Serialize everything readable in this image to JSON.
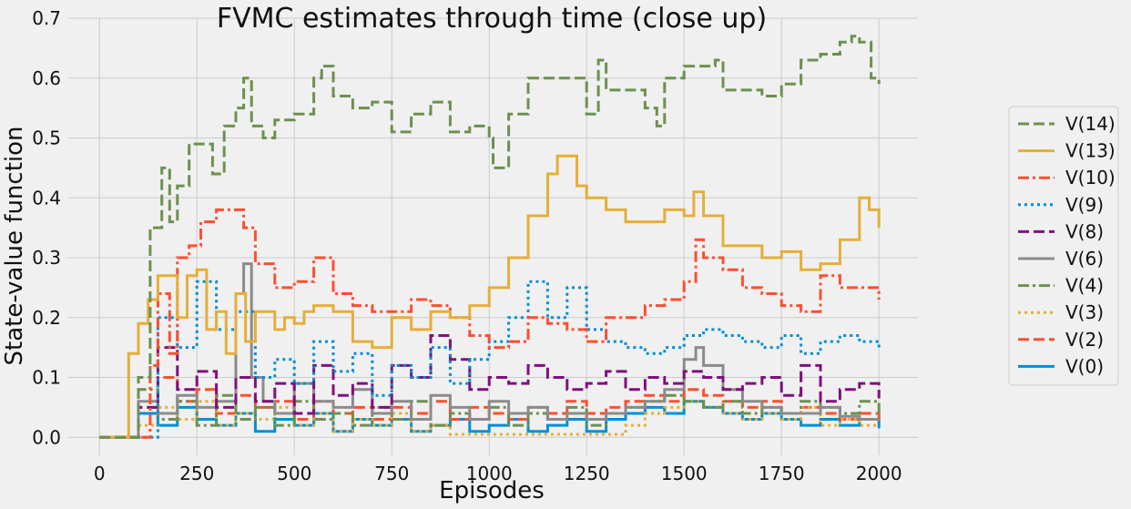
{
  "chart_data": {
    "type": "line",
    "title": "FVMC estimates through time (close up)",
    "xlabel": "Episodes",
    "ylabel": "State-value function",
    "xlim": [
      -80,
      2100
    ],
    "ylim": [
      -0.03,
      0.7
    ],
    "xticks": [
      0,
      250,
      500,
      750,
      1000,
      1250,
      1500,
      1750,
      2000
    ],
    "yticks": [
      0.0,
      0.1,
      0.2,
      0.3,
      0.4,
      0.5,
      0.6,
      0.7
    ],
    "grid": true,
    "legend_position": "right",
    "series": [
      {
        "name": "V(14)",
        "color": "#6d904f",
        "dash": "dashed",
        "x": [
          0,
          50,
          100,
          130,
          160,
          180,
          200,
          230,
          260,
          290,
          320,
          350,
          370,
          390,
          420,
          450,
          500,
          550,
          570,
          600,
          650,
          700,
          750,
          800,
          850,
          900,
          950,
          1000,
          1010,
          1050,
          1100,
          1150,
          1200,
          1250,
          1280,
          1300,
          1350,
          1400,
          1430,
          1450,
          1500,
          1550,
          1580,
          1600,
          1650,
          1700,
          1750,
          1800,
          1850,
          1900,
          1930,
          1950,
          1980,
          2000
        ],
        "y": [
          0,
          0,
          0.1,
          0.35,
          0.45,
          0.36,
          0.42,
          0.49,
          0.49,
          0.44,
          0.52,
          0.55,
          0.6,
          0.52,
          0.5,
          0.53,
          0.54,
          0.6,
          0.62,
          0.57,
          0.55,
          0.56,
          0.51,
          0.54,
          0.56,
          0.51,
          0.52,
          0.5,
          0.45,
          0.54,
          0.6,
          0.6,
          0.6,
          0.54,
          0.63,
          0.58,
          0.58,
          0.55,
          0.52,
          0.6,
          0.62,
          0.62,
          0.63,
          0.58,
          0.58,
          0.57,
          0.59,
          0.63,
          0.64,
          0.66,
          0.67,
          0.66,
          0.6,
          0.59
        ]
      },
      {
        "name": "V(13)",
        "color": "#e5ae38",
        "dash": "solid",
        "x": [
          0,
          50,
          75,
          100,
          125,
          150,
          175,
          200,
          225,
          250,
          275,
          300,
          325,
          350,
          375,
          400,
          425,
          450,
          475,
          500,
          525,
          550,
          600,
          650,
          700,
          750,
          800,
          850,
          900,
          950,
          1000,
          1050,
          1100,
          1150,
          1175,
          1200,
          1225,
          1250,
          1300,
          1350,
          1400,
          1450,
          1500,
          1525,
          1550,
          1600,
          1650,
          1700,
          1750,
          1800,
          1850,
          1900,
          1950,
          1975,
          2000
        ],
        "y": [
          0,
          0,
          0.14,
          0.19,
          0.23,
          0.27,
          0.27,
          0.2,
          0.27,
          0.28,
          0.18,
          0.21,
          0.14,
          0.24,
          0.16,
          0.21,
          0.21,
          0.18,
          0.2,
          0.19,
          0.21,
          0.22,
          0.21,
          0.16,
          0.15,
          0.2,
          0.18,
          0.21,
          0.2,
          0.22,
          0.25,
          0.3,
          0.37,
          0.44,
          0.47,
          0.47,
          0.42,
          0.4,
          0.38,
          0.36,
          0.36,
          0.38,
          0.37,
          0.41,
          0.37,
          0.32,
          0.32,
          0.3,
          0.31,
          0.28,
          0.29,
          0.33,
          0.4,
          0.38,
          0.35
        ]
      },
      {
        "name": "V(10)",
        "color": "#fc4f30",
        "dash": "dashdot",
        "x": [
          0,
          100,
          130,
          150,
          180,
          200,
          230,
          260,
          300,
          340,
          370,
          400,
          450,
          500,
          550,
          600,
          650,
          700,
          800,
          850,
          900,
          950,
          1000,
          1050,
          1100,
          1150,
          1200,
          1250,
          1300,
          1350,
          1400,
          1450,
          1500,
          1530,
          1550,
          1600,
          1650,
          1700,
          1750,
          1800,
          1850,
          1900,
          1950,
          2000
        ],
        "y": [
          0,
          0,
          0.12,
          0.24,
          0.14,
          0.3,
          0.32,
          0.36,
          0.38,
          0.38,
          0.35,
          0.29,
          0.25,
          0.26,
          0.3,
          0.24,
          0.22,
          0.21,
          0.23,
          0.22,
          0.2,
          0.17,
          0.15,
          0.16,
          0.2,
          0.19,
          0.18,
          0.16,
          0.2,
          0.2,
          0.22,
          0.23,
          0.26,
          0.33,
          0.3,
          0.28,
          0.25,
          0.24,
          0.22,
          0.21,
          0.27,
          0.25,
          0.25,
          0.23
        ]
      },
      {
        "name": "V(9)",
        "color": "#008fd5",
        "dash": "dotted",
        "x": [
          0,
          100,
          150,
          200,
          250,
          300,
          350,
          400,
          450,
          500,
          550,
          600,
          650,
          700,
          750,
          800,
          850,
          900,
          950,
          1000,
          1050,
          1100,
          1150,
          1200,
          1250,
          1300,
          1350,
          1400,
          1450,
          1500,
          1550,
          1600,
          1650,
          1700,
          1750,
          1800,
          1850,
          1900,
          1950,
          2000
        ],
        "y": [
          0,
          0,
          0.2,
          0.15,
          0.26,
          0.18,
          0.21,
          0.1,
          0.13,
          0.09,
          0.16,
          0.11,
          0.14,
          0.07,
          0.12,
          0.1,
          0.15,
          0.09,
          0.13,
          0.16,
          0.2,
          0.26,
          0.2,
          0.25,
          0.18,
          0.16,
          0.15,
          0.14,
          0.15,
          0.17,
          0.18,
          0.17,
          0.16,
          0.15,
          0.17,
          0.14,
          0.16,
          0.17,
          0.16,
          0.15
        ]
      },
      {
        "name": "V(8)",
        "color": "#810f7c",
        "dash": "dashed",
        "x": [
          0,
          50,
          100,
          150,
          200,
          250,
          300,
          350,
          400,
          450,
          500,
          550,
          600,
          650,
          700,
          750,
          800,
          850,
          900,
          950,
          1000,
          1050,
          1100,
          1150,
          1200,
          1250,
          1300,
          1350,
          1400,
          1450,
          1500,
          1550,
          1600,
          1650,
          1700,
          1750,
          1800,
          1850,
          1900,
          1950,
          2000
        ],
        "y": [
          0,
          0,
          0.05,
          0.15,
          0.08,
          0.11,
          0.05,
          0.1,
          0.06,
          0.09,
          0.04,
          0.12,
          0.07,
          0.09,
          0.05,
          0.12,
          0.1,
          0.17,
          0.13,
          0.08,
          0.1,
          0.09,
          0.12,
          0.1,
          0.08,
          0.09,
          0.11,
          0.08,
          0.1,
          0.09,
          0.11,
          0.1,
          0.08,
          0.09,
          0.1,
          0.07,
          0.12,
          0.06,
          0.08,
          0.09,
          0.065
        ]
      },
      {
        "name": "V(6)",
        "color": "#8b8b8b",
        "dash": "solid",
        "x": [
          0,
          50,
          100,
          150,
          200,
          250,
          300,
          350,
          370,
          390,
          420,
          450,
          500,
          550,
          600,
          650,
          700,
          750,
          800,
          850,
          900,
          950,
          1000,
          1050,
          1100,
          1150,
          1200,
          1250,
          1300,
          1350,
          1400,
          1450,
          1500,
          1530,
          1550,
          1600,
          1650,
          1700,
          1750,
          1800,
          1850,
          1900,
          1950,
          2000
        ],
        "y": [
          0,
          0,
          0.06,
          0.04,
          0.07,
          0.05,
          0.06,
          0.24,
          0.29,
          0.1,
          0.06,
          0.04,
          0.09,
          0.06,
          0.05,
          0.08,
          0.04,
          0.06,
          0.03,
          0.07,
          0.05,
          0.03,
          0.06,
          0.04,
          0.05,
          0.03,
          0.04,
          0.03,
          0.04,
          0.05,
          0.06,
          0.08,
          0.13,
          0.15,
          0.12,
          0.08,
          0.06,
          0.05,
          0.04,
          0.04,
          0.05,
          0.035,
          0.03,
          0.03
        ]
      },
      {
        "name": "V(4)",
        "color": "#6d904f",
        "dash": "dashdot",
        "x": [
          0,
          50,
          100,
          150,
          200,
          250,
          300,
          350,
          400,
          450,
          500,
          550,
          600,
          650,
          700,
          750,
          800,
          850,
          900,
          950,
          1000,
          1050,
          1100,
          1150,
          1200,
          1250,
          1300,
          1350,
          1400,
          1450,
          1500,
          1550,
          1600,
          1650,
          1700,
          1750,
          1800,
          1850,
          1900,
          1950,
          2000
        ],
        "y": [
          0,
          0,
          0.08,
          0.03,
          0.06,
          0.02,
          0.07,
          0.03,
          0.05,
          0.02,
          0.06,
          0.03,
          0.04,
          0.02,
          0.05,
          0.03,
          0.06,
          0.02,
          0.04,
          0.03,
          0.05,
          0.02,
          0.04,
          0.03,
          0.05,
          0.02,
          0.04,
          0.05,
          0.06,
          0.07,
          0.06,
          0.05,
          0.06,
          0.04,
          0.05,
          0.04,
          0.06,
          0.05,
          0.04,
          0.06,
          0.03
        ]
      },
      {
        "name": "V(3)",
        "color": "#e5ae38",
        "dash": "dotted",
        "x": [
          0,
          50,
          100,
          150,
          200,
          250,
          300,
          350,
          400,
          450,
          500,
          550,
          600,
          650,
          700,
          750,
          800,
          850,
          900,
          950,
          1000,
          1050,
          1100,
          1150,
          1200,
          1250,
          1300,
          1350,
          1400,
          1450,
          1500,
          1550,
          1600,
          1650,
          1700,
          1750,
          1800,
          1850,
          1900,
          1950,
          2000
        ],
        "y": [
          0,
          0,
          0.02,
          0.05,
          0.03,
          0.06,
          0.02,
          0.04,
          0.03,
          0.05,
          0.02,
          0.04,
          0.01,
          0.03,
          0.02,
          0.04,
          0.01,
          0.02,
          0.005,
          0.005,
          0.005,
          0.005,
          0.005,
          0.005,
          0.005,
          0.005,
          0.005,
          0.02,
          0.04,
          0.05,
          0.06,
          0.05,
          0.04,
          0.03,
          0.04,
          0.03,
          0.05,
          0.02,
          0.03,
          0.02,
          0.02
        ]
      },
      {
        "name": "V(2)",
        "color": "#fc4f30",
        "dash": "dashed",
        "x": [
          0,
          50,
          100,
          150,
          200,
          250,
          300,
          350,
          400,
          450,
          500,
          550,
          600,
          650,
          700,
          750,
          800,
          850,
          900,
          950,
          1000,
          1050,
          1100,
          1150,
          1200,
          1250,
          1300,
          1350,
          1400,
          1450,
          1500,
          1550,
          1600,
          1650,
          1700,
          1750,
          1800,
          1850,
          1900,
          1950,
          2000
        ],
        "y": [
          0,
          0,
          0.05,
          0.1,
          0.06,
          0.08,
          0.04,
          0.07,
          0.05,
          0.06,
          0.03,
          0.06,
          0.04,
          0.05,
          0.03,
          0.05,
          0.04,
          0.06,
          0.03,
          0.05,
          0.04,
          0.03,
          0.05,
          0.04,
          0.06,
          0.04,
          0.05,
          0.06,
          0.07,
          0.06,
          0.08,
          0.07,
          0.06,
          0.05,
          0.06,
          0.04,
          0.05,
          0.04,
          0.03,
          0.04,
          0.02
        ]
      },
      {
        "name": "V(0)",
        "color": "#008fd5",
        "dash": "solid",
        "x": [
          0,
          50,
          100,
          150,
          200,
          250,
          300,
          350,
          400,
          450,
          500,
          550,
          600,
          650,
          700,
          750,
          800,
          850,
          900,
          950,
          1000,
          1050,
          1100,
          1150,
          1200,
          1250,
          1300,
          1350,
          1400,
          1450,
          1500,
          1550,
          1600,
          1650,
          1700,
          1750,
          1800,
          1850,
          1900,
          1950,
          2000
        ],
        "y": [
          0,
          0,
          0.04,
          0.02,
          0.05,
          0.03,
          0.02,
          0.04,
          0.01,
          0.03,
          0.02,
          0.04,
          0.01,
          0.03,
          0.02,
          0.03,
          0.01,
          0.02,
          0.03,
          0.01,
          0.02,
          0.03,
          0.01,
          0.02,
          0.03,
          0.01,
          0.03,
          0.04,
          0.05,
          0.04,
          0.06,
          0.05,
          0.04,
          0.03,
          0.04,
          0.03,
          0.02,
          0.03,
          0.02,
          0.03,
          0.015
        ]
      }
    ]
  }
}
